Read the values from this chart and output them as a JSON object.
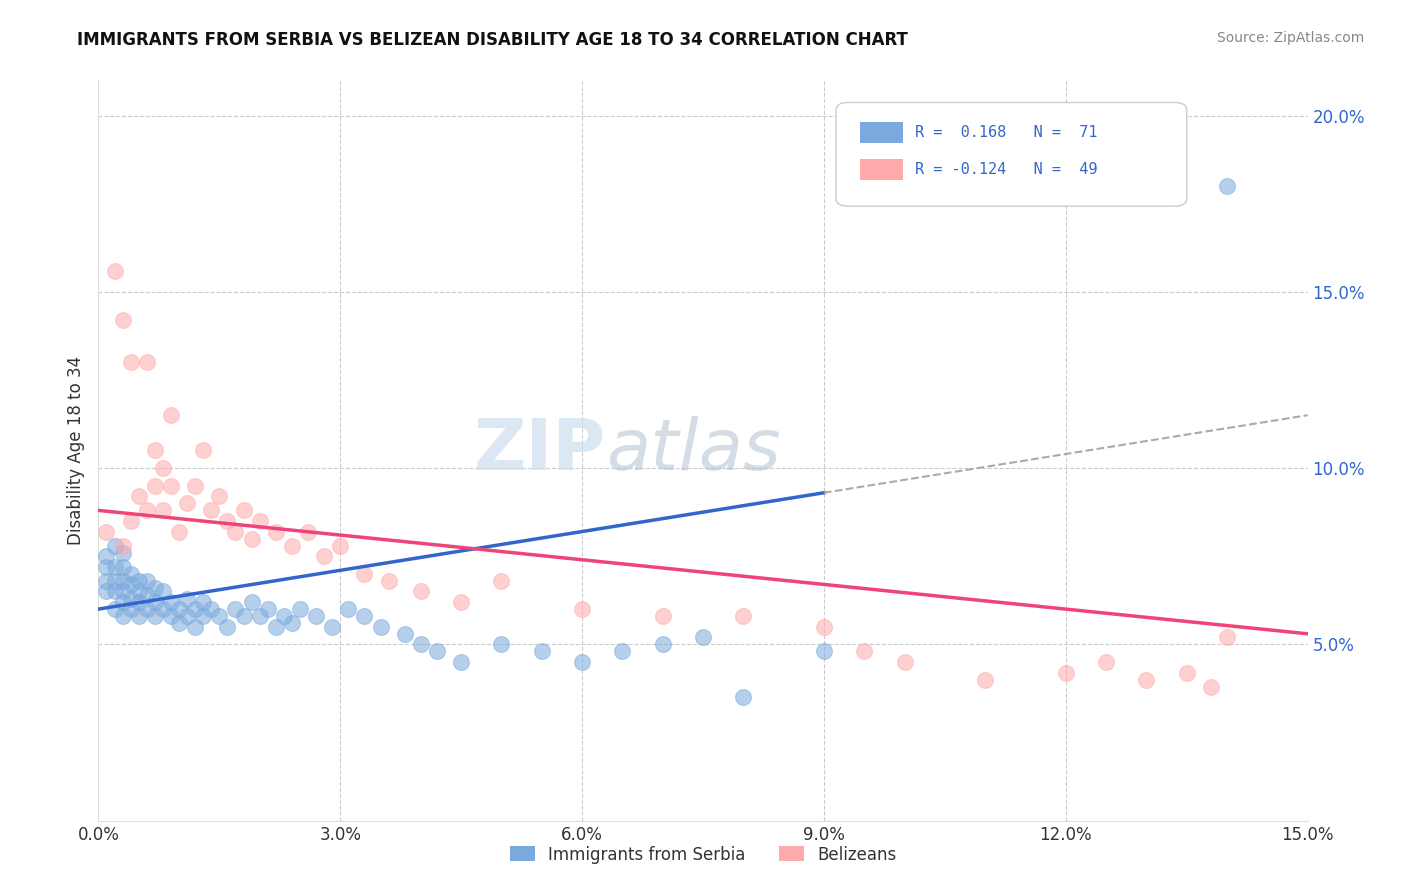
{
  "title": "IMMIGRANTS FROM SERBIA VS BELIZEAN DISABILITY AGE 18 TO 34 CORRELATION CHART",
  "source": "Source: ZipAtlas.com",
  "xlabel": "",
  "ylabel": "Disability Age 18 to 34",
  "xlim": [
    0.0,
    0.15
  ],
  "ylim": [
    0.0,
    0.21
  ],
  "xticks": [
    0.0,
    0.03,
    0.06,
    0.09,
    0.12,
    0.15
  ],
  "xtick_labels": [
    "0.0%",
    "3.0%",
    "6.0%",
    "9.0%",
    "12.0%",
    "15.0%"
  ],
  "yticks_right": [
    0.05,
    0.1,
    0.15,
    0.2
  ],
  "ytick_labels_right": [
    "5.0%",
    "10.0%",
    "15.0%",
    "20.0%"
  ],
  "grid_color": "#cccccc",
  "background_color": "#ffffff",
  "series1_color": "#7aaadd",
  "series1_label": "Immigrants from Serbia",
  "series1_R": 0.168,
  "series1_N": 71,
  "series2_color": "#ffaaaa",
  "series2_label": "Belizeans",
  "series2_R": -0.124,
  "series2_N": 49,
  "blue_line_color": "#3366cc",
  "pink_line_color": "#ee4477",
  "dashed_line_color": "#aaaaaa",
  "series1_x": [
    0.001,
    0.001,
    0.001,
    0.001,
    0.002,
    0.002,
    0.002,
    0.002,
    0.002,
    0.003,
    0.003,
    0.003,
    0.003,
    0.003,
    0.003,
    0.004,
    0.004,
    0.004,
    0.004,
    0.005,
    0.005,
    0.005,
    0.005,
    0.006,
    0.006,
    0.006,
    0.007,
    0.007,
    0.007,
    0.008,
    0.008,
    0.009,
    0.009,
    0.01,
    0.01,
    0.011,
    0.011,
    0.012,
    0.012,
    0.013,
    0.013,
    0.014,
    0.015,
    0.016,
    0.017,
    0.018,
    0.019,
    0.02,
    0.021,
    0.022,
    0.023,
    0.024,
    0.025,
    0.027,
    0.029,
    0.031,
    0.033,
    0.035,
    0.038,
    0.04,
    0.042,
    0.045,
    0.05,
    0.055,
    0.06,
    0.065,
    0.07,
    0.075,
    0.08,
    0.09,
    0.14
  ],
  "series1_y": [
    0.065,
    0.068,
    0.072,
    0.075,
    0.06,
    0.065,
    0.068,
    0.072,
    0.078,
    0.058,
    0.062,
    0.065,
    0.068,
    0.072,
    0.076,
    0.06,
    0.063,
    0.067,
    0.07,
    0.058,
    0.062,
    0.065,
    0.068,
    0.06,
    0.064,
    0.068,
    0.058,
    0.062,
    0.066,
    0.06,
    0.065,
    0.058,
    0.062,
    0.056,
    0.06,
    0.058,
    0.063,
    0.055,
    0.06,
    0.058,
    0.062,
    0.06,
    0.058,
    0.055,
    0.06,
    0.058,
    0.062,
    0.058,
    0.06,
    0.055,
    0.058,
    0.056,
    0.06,
    0.058,
    0.055,
    0.06,
    0.058,
    0.055,
    0.053,
    0.05,
    0.048,
    0.045,
    0.05,
    0.048,
    0.045,
    0.048,
    0.05,
    0.052,
    0.035,
    0.048,
    0.18
  ],
  "series2_x": [
    0.001,
    0.002,
    0.003,
    0.003,
    0.004,
    0.004,
    0.005,
    0.006,
    0.006,
    0.007,
    0.007,
    0.008,
    0.008,
    0.009,
    0.009,
    0.01,
    0.011,
    0.012,
    0.013,
    0.014,
    0.015,
    0.016,
    0.017,
    0.018,
    0.019,
    0.02,
    0.022,
    0.024,
    0.026,
    0.028,
    0.03,
    0.033,
    0.036,
    0.04,
    0.045,
    0.05,
    0.06,
    0.07,
    0.08,
    0.09,
    0.095,
    0.1,
    0.11,
    0.12,
    0.125,
    0.13,
    0.135,
    0.138,
    0.14
  ],
  "series2_y": [
    0.082,
    0.156,
    0.078,
    0.142,
    0.085,
    0.13,
    0.092,
    0.13,
    0.088,
    0.105,
    0.095,
    0.1,
    0.088,
    0.095,
    0.115,
    0.082,
    0.09,
    0.095,
    0.105,
    0.088,
    0.092,
    0.085,
    0.082,
    0.088,
    0.08,
    0.085,
    0.082,
    0.078,
    0.082,
    0.075,
    0.078,
    0.07,
    0.068,
    0.065,
    0.062,
    0.068,
    0.06,
    0.058,
    0.058,
    0.055,
    0.048,
    0.045,
    0.04,
    0.042,
    0.045,
    0.04,
    0.042,
    0.038,
    0.052
  ],
  "blue_line_x0": 0.0,
  "blue_line_y0": 0.06,
  "blue_line_x1": 0.09,
  "blue_line_y1": 0.093,
  "dashed_line_x0": 0.09,
  "dashed_line_y0": 0.093,
  "dashed_line_x1": 0.15,
  "dashed_line_y1": 0.115,
  "pink_line_x0": 0.0,
  "pink_line_y0": 0.088,
  "pink_line_x1": 0.15,
  "pink_line_y1": 0.053
}
